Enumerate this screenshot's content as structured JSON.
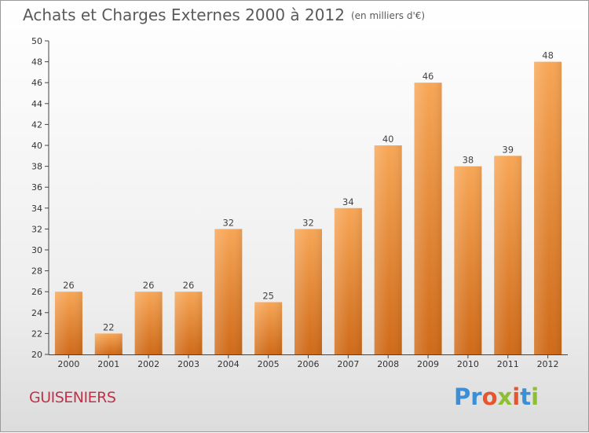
{
  "header": {
    "title": "Achats et Charges Externes 2000 à 2012",
    "subtitle": "(en milliers d'€)"
  },
  "footer": {
    "commune": "GUISENIERS",
    "logo": "Proxiti"
  },
  "colors": {
    "bar_light": "#f7a656",
    "bar_dark": "#cf6a18",
    "commune_text": "#c0334a",
    "logo_letters": [
      "#3b8fd6",
      "#3b8fd6",
      "#e8542d",
      "#8dbf2e",
      "#e8542d",
      "#3b8fd6",
      "#8dbf2e"
    ]
  },
  "chart_data": {
    "type": "bar",
    "categories": [
      "2000",
      "2001",
      "2002",
      "2003",
      "2004",
      "2005",
      "2006",
      "2007",
      "2008",
      "2009",
      "2010",
      "2011",
      "2012"
    ],
    "values": [
      26,
      22,
      26,
      26,
      32,
      25,
      32,
      34,
      40,
      46,
      38,
      39,
      48
    ],
    "ylim": [
      20,
      50
    ],
    "yticks": [
      20,
      22,
      24,
      26,
      28,
      30,
      32,
      34,
      36,
      38,
      40,
      42,
      44,
      46,
      48,
      50
    ],
    "grid": false,
    "legend": "none"
  }
}
